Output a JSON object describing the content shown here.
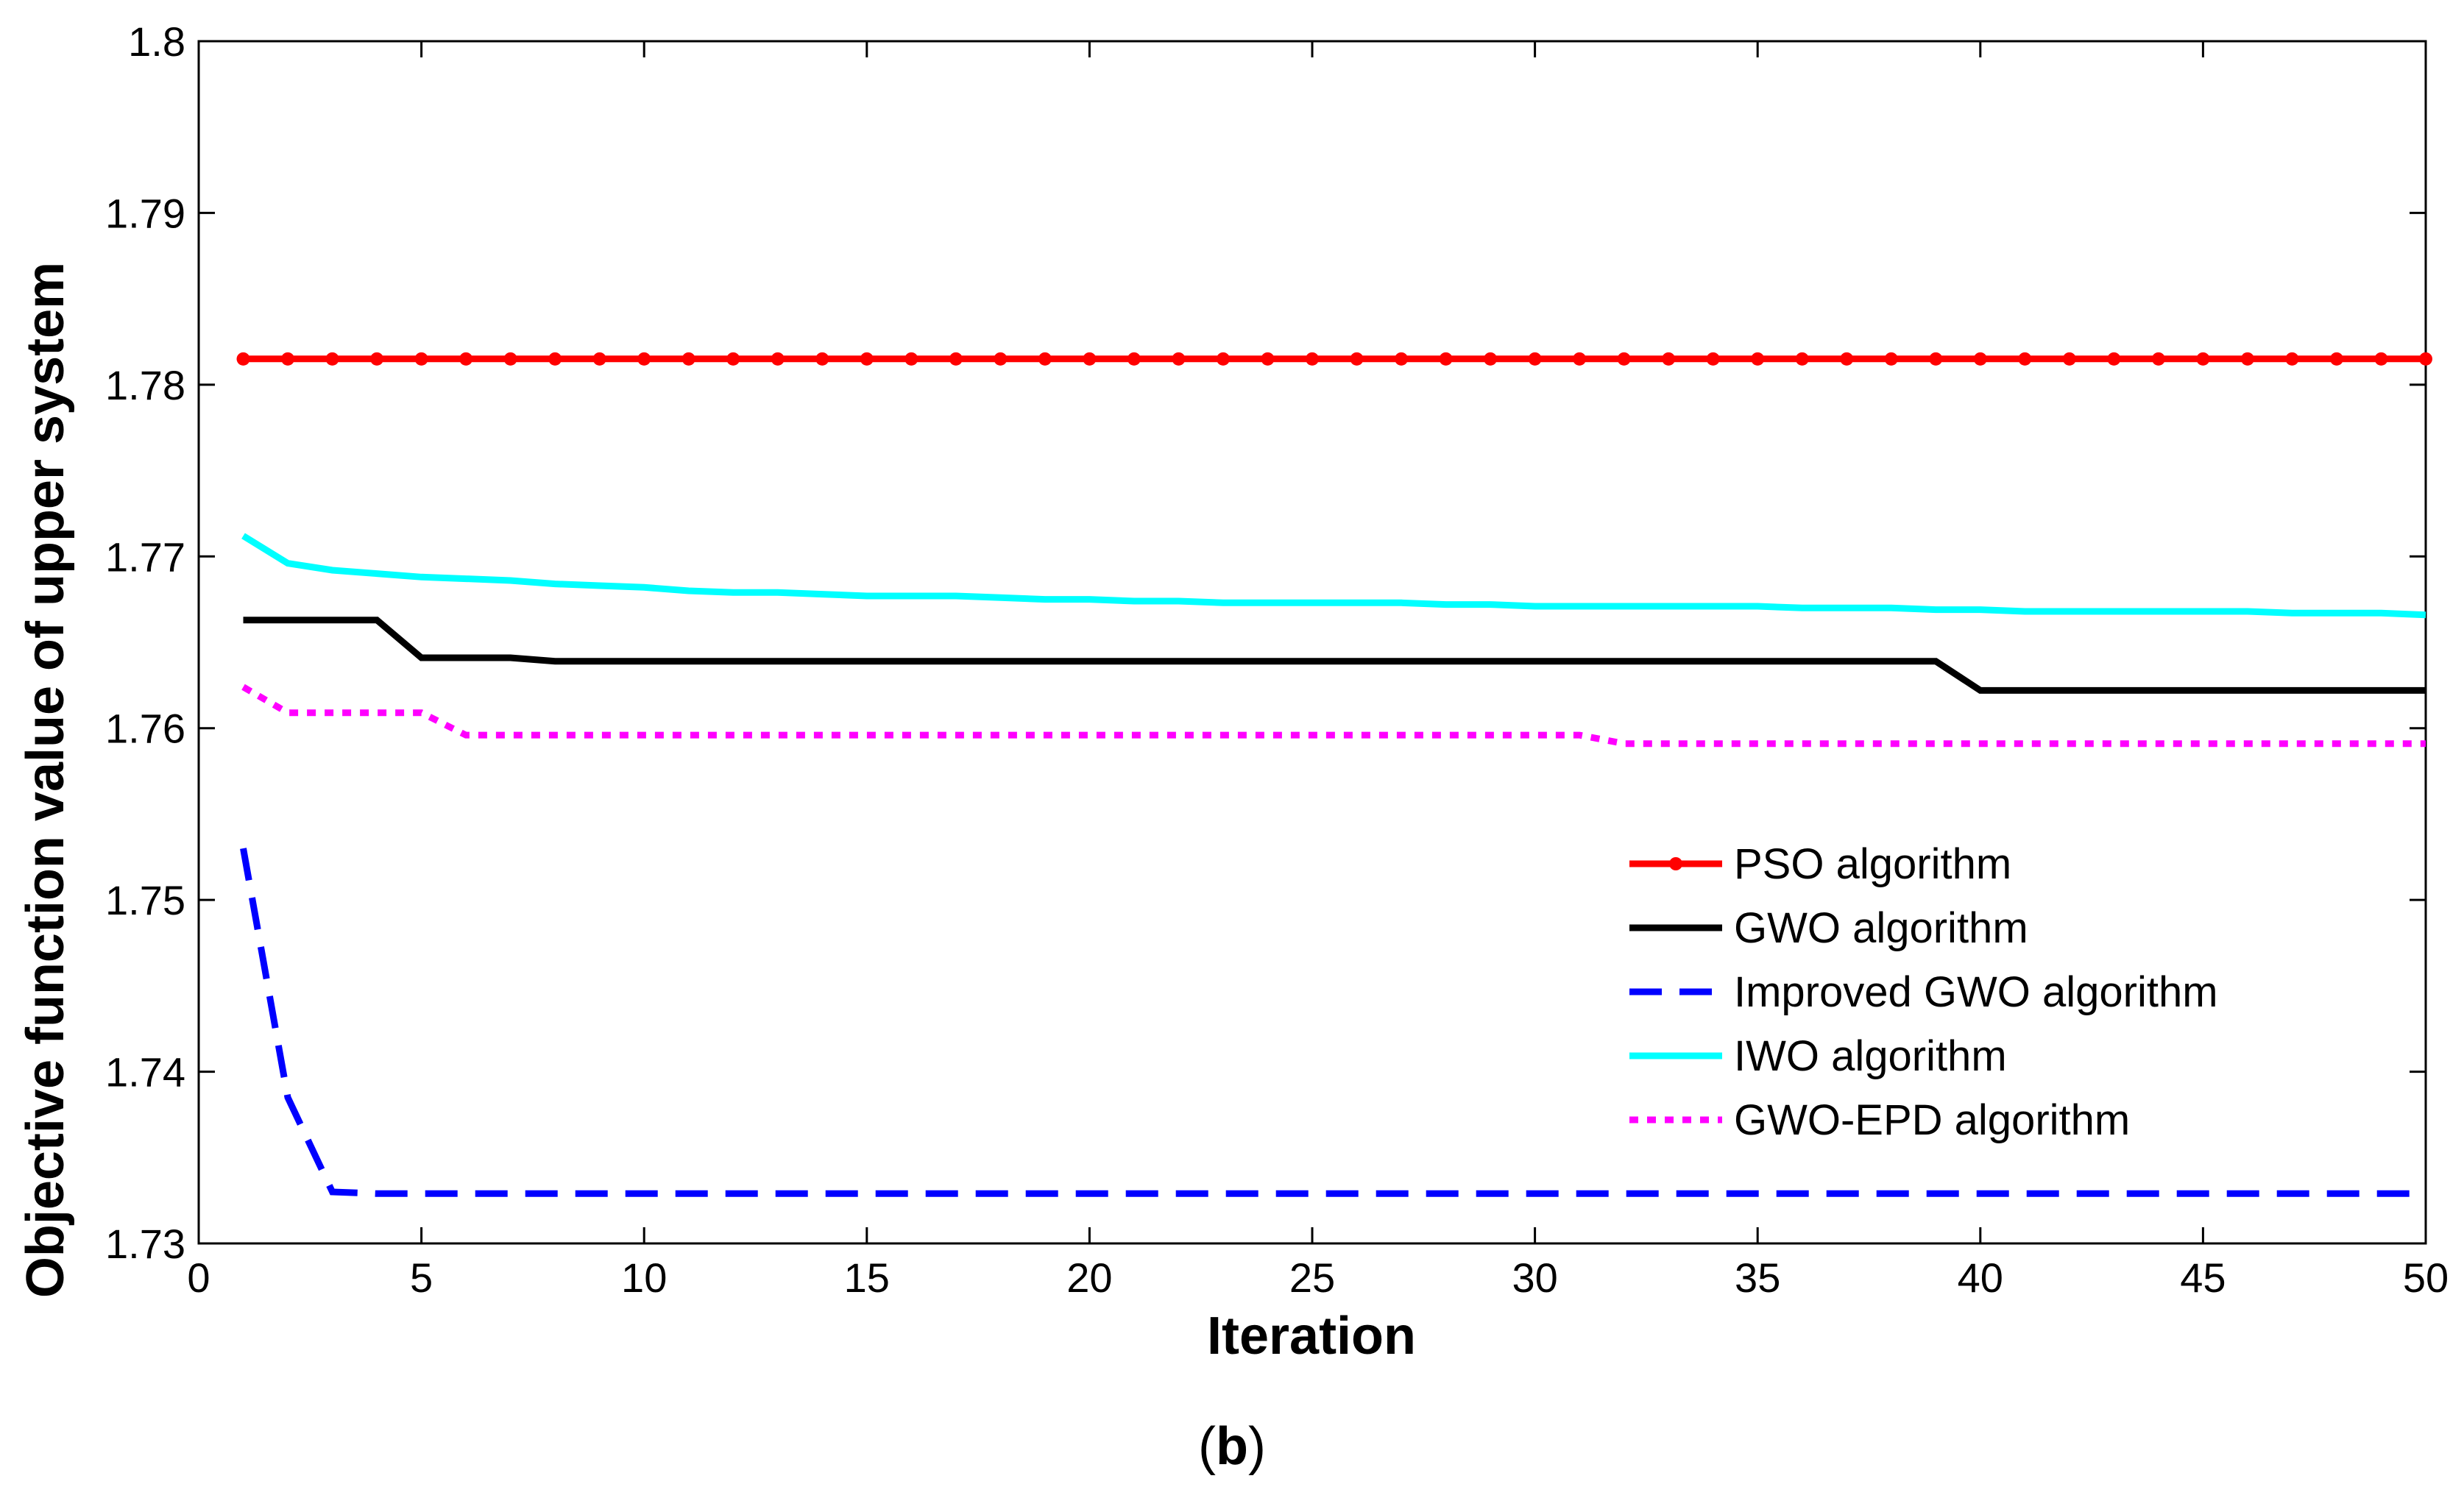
{
  "caption": {
    "open": "(",
    "letter": "b",
    "close": ")"
  },
  "chart_data": {
    "type": "line",
    "title": "",
    "xlabel": "Iteration",
    "ylabel": "Objective function value of upper system",
    "xlim": [
      0,
      50
    ],
    "ylim": [
      1.73,
      1.8
    ],
    "xticks": [
      0,
      5,
      10,
      15,
      20,
      25,
      30,
      35,
      40,
      45,
      50
    ],
    "yticks": [
      1.73,
      1.74,
      1.75,
      1.76,
      1.77,
      1.78,
      1.79,
      1.8
    ],
    "ytick_labels": [
      "1.73",
      "1.74",
      "1.75",
      "1.76",
      "1.77",
      "1.78",
      "1.79",
      "1.8"
    ],
    "grid": false,
    "legend_position": "lower-right",
    "x": [
      1,
      2,
      3,
      4,
      5,
      6,
      7,
      8,
      9,
      10,
      11,
      12,
      13,
      14,
      15,
      16,
      17,
      18,
      19,
      20,
      21,
      22,
      23,
      24,
      25,
      26,
      27,
      28,
      29,
      30,
      31,
      32,
      33,
      34,
      35,
      36,
      37,
      38,
      39,
      40,
      41,
      42,
      43,
      44,
      45,
      46,
      47,
      48,
      49,
      50
    ],
    "series": [
      {
        "name": "PSO algorithm",
        "color": "#ff0000",
        "style": "solid-dot",
        "values": [
          1.7815,
          1.7815,
          1.7815,
          1.7815,
          1.7815,
          1.7815,
          1.7815,
          1.7815,
          1.7815,
          1.7815,
          1.7815,
          1.7815,
          1.7815,
          1.7815,
          1.7815,
          1.7815,
          1.7815,
          1.7815,
          1.7815,
          1.7815,
          1.7815,
          1.7815,
          1.7815,
          1.7815,
          1.7815,
          1.7815,
          1.7815,
          1.7815,
          1.7815,
          1.7815,
          1.7815,
          1.7815,
          1.7815,
          1.7815,
          1.7815,
          1.7815,
          1.7815,
          1.7815,
          1.7815,
          1.7815,
          1.7815,
          1.7815,
          1.7815,
          1.7815,
          1.7815,
          1.7815,
          1.7815,
          1.7815,
          1.7815,
          1.7815
        ]
      },
      {
        "name": "GWO algorithm",
        "color": "#000000",
        "style": "solid",
        "values": [
          1.7663,
          1.7663,
          1.7663,
          1.7663,
          1.7641,
          1.7641,
          1.7641,
          1.7639,
          1.7639,
          1.7639,
          1.7639,
          1.7639,
          1.7639,
          1.7639,
          1.7639,
          1.7639,
          1.7639,
          1.7639,
          1.7639,
          1.7639,
          1.7639,
          1.7639,
          1.7639,
          1.7639,
          1.7639,
          1.7639,
          1.7639,
          1.7639,
          1.7639,
          1.7639,
          1.7639,
          1.7639,
          1.7639,
          1.7639,
          1.7639,
          1.7639,
          1.7639,
          1.7639,
          1.7639,
          1.7622,
          1.7622,
          1.7622,
          1.7622,
          1.7622,
          1.7622,
          1.7622,
          1.7622,
          1.7622,
          1.7622,
          1.7622
        ]
      },
      {
        "name": "Improved GWO algorithm",
        "color": "#0000ff",
        "style": "dashed",
        "values": [
          1.753,
          1.7385,
          1.733,
          1.7329,
          1.7329,
          1.7329,
          1.7329,
          1.7329,
          1.7329,
          1.7329,
          1.7329,
          1.7329,
          1.7329,
          1.7329,
          1.7329,
          1.7329,
          1.7329,
          1.7329,
          1.7329,
          1.7329,
          1.7329,
          1.7329,
          1.7329,
          1.7329,
          1.7329,
          1.7329,
          1.7329,
          1.7329,
          1.7329,
          1.7329,
          1.7329,
          1.7329,
          1.7329,
          1.7329,
          1.7329,
          1.7329,
          1.7329,
          1.7329,
          1.7329,
          1.7329,
          1.7329,
          1.7329,
          1.7329,
          1.7329,
          1.7329,
          1.7329,
          1.7329,
          1.7329,
          1.7329,
          1.7329
        ]
      },
      {
        "name": "IWO algorithm",
        "color": "#00ffff",
        "style": "solid",
        "values": [
          1.7712,
          1.7696,
          1.7692,
          1.769,
          1.7688,
          1.7687,
          1.7686,
          1.7684,
          1.7683,
          1.7682,
          1.768,
          1.7679,
          1.7679,
          1.7678,
          1.7677,
          1.7677,
          1.7677,
          1.7676,
          1.7675,
          1.7675,
          1.7674,
          1.7674,
          1.7673,
          1.7673,
          1.7673,
          1.7673,
          1.7673,
          1.7672,
          1.7672,
          1.7671,
          1.7671,
          1.7671,
          1.7671,
          1.7671,
          1.7671,
          1.767,
          1.767,
          1.767,
          1.7669,
          1.7669,
          1.7668,
          1.7668,
          1.7668,
          1.7668,
          1.7668,
          1.7668,
          1.7667,
          1.7667,
          1.7667,
          1.7666
        ]
      },
      {
        "name": "GWO-EPD algorithm",
        "color": "#ff00ff",
        "style": "dotted",
        "values": [
          1.7624,
          1.7609,
          1.7609,
          1.7609,
          1.7609,
          1.7596,
          1.7596,
          1.7596,
          1.7596,
          1.7596,
          1.7596,
          1.7596,
          1.7596,
          1.7596,
          1.7596,
          1.7596,
          1.7596,
          1.7596,
          1.7596,
          1.7596,
          1.7596,
          1.7596,
          1.7596,
          1.7596,
          1.7596,
          1.7596,
          1.7596,
          1.7596,
          1.7596,
          1.7596,
          1.7596,
          1.7591,
          1.7591,
          1.7591,
          1.7591,
          1.7591,
          1.7591,
          1.7591,
          1.7591,
          1.7591,
          1.7591,
          1.7591,
          1.7591,
          1.7591,
          1.7591,
          1.7591,
          1.7591,
          1.7591,
          1.7591,
          1.7591
        ]
      }
    ]
  }
}
